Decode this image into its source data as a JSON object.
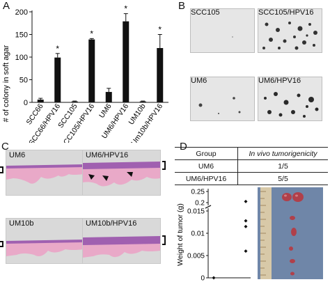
{
  "panels": {
    "A": "A",
    "B": "B",
    "C": "C",
    "D": "D"
  },
  "chart_data": [
    {
      "type": "bar",
      "ylabel": "# of colony in soft agar",
      "ylim": [
        0,
        200
      ],
      "yticks": [
        0,
        50,
        100,
        150,
        200
      ],
      "categories": [
        "SCC66",
        "SCC66/HPV16",
        "SCC105",
        "SCC105/HPV16",
        "UM6",
        "UM6/HPV16",
        "UM10b",
        "Um10b/HPV16"
      ],
      "values": [
        6,
        99,
        2,
        139,
        23,
        179,
        2,
        120
      ],
      "errors": [
        3,
        9,
        1,
        2,
        8,
        17,
        1,
        30
      ],
      "significance": [
        "",
        "*",
        "",
        "*",
        "",
        "*",
        "",
        "*"
      ]
    },
    {
      "type": "scatter",
      "ylabel": "Weight of tumor (g)",
      "yticks_lower": [
        "0",
        "0.005",
        "0.01",
        "0.015"
      ],
      "yticks_upper": [
        "0.2",
        "0.25"
      ],
      "axis_break": true,
      "groups": [
        {
          "points": [
            0
          ]
        },
        {
          "points": [
            0.006,
            0.0115,
            0.0128,
            0.205
          ]
        }
      ]
    }
  ],
  "micrographs": [
    {
      "label": "SCC105"
    },
    {
      "label": "SCC105/HPV16"
    },
    {
      "label": "UM6"
    },
    {
      "label": "UM6/HPV16"
    }
  ],
  "histology": [
    {
      "label": "UM6"
    },
    {
      "label": "UM6/HPV16"
    },
    {
      "label": "UM10b"
    },
    {
      "label": "UM10b/HPV16"
    }
  ],
  "table": {
    "header": [
      "Group",
      "In vivo tumorigenicity"
    ],
    "rows": [
      [
        "UM6",
        "1/5"
      ],
      [
        "UM6/HPV16",
        "5/5"
      ]
    ]
  },
  "colors": {
    "bar": "#111111",
    "histo_pink": "#e9a9c8",
    "histo_purple": "#a060b0",
    "agar_bg": "#e6e6e6",
    "ruler_bg": "#6f86a8"
  }
}
